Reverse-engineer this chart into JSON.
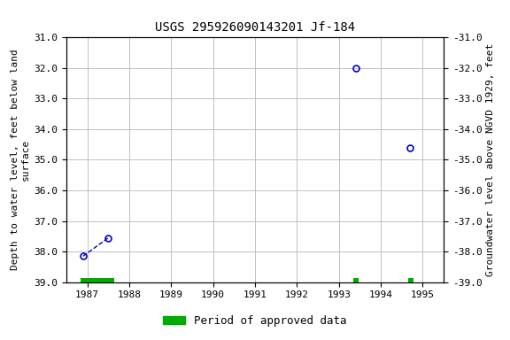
{
  "title": "USGS 295926090143201 Jf-184",
  "ylabel_left": "Depth to water level, feet below land\nsurface",
  "ylabel_right": "Groundwater level above NGVD 1929, feet",
  "xlim": [
    1986.5,
    1995.5
  ],
  "ylim_left": [
    31.0,
    39.0
  ],
  "ylim_right": [
    -31.0,
    -39.0
  ],
  "yticks_left": [
    31.0,
    32.0,
    33.0,
    34.0,
    35.0,
    36.0,
    37.0,
    38.0,
    39.0
  ],
  "yticks_right": [
    -31.0,
    -32.0,
    -33.0,
    -34.0,
    -35.0,
    -36.0,
    -37.0,
    -38.0,
    -39.0
  ],
  "xticks": [
    1987,
    1988,
    1989,
    1990,
    1991,
    1992,
    1993,
    1994,
    1995
  ],
  "data_points_x": [
    1986.9,
    1987.5,
    1993.4,
    1994.7
  ],
  "data_points_y": [
    38.15,
    37.55,
    32.0,
    34.6
  ],
  "connected_indices": [
    0,
    1
  ],
  "green_bars": [
    {
      "x_start": 1986.83,
      "x_end": 1987.65,
      "y_center": 38.93,
      "height": 0.14
    },
    {
      "x_start": 1993.35,
      "x_end": 1993.48,
      "y_center": 38.93,
      "height": 0.14
    },
    {
      "x_start": 1994.65,
      "x_end": 1994.78,
      "y_center": 38.93,
      "height": 0.14
    }
  ],
  "point_color": "#0000cc",
  "line_color": "#0000cc",
  "green_color": "#00aa00",
  "background_color": "#ffffff",
  "grid_color": "#c0c0c0",
  "title_fontsize": 10,
  "label_fontsize": 8,
  "tick_fontsize": 8,
  "legend_fontsize": 9
}
